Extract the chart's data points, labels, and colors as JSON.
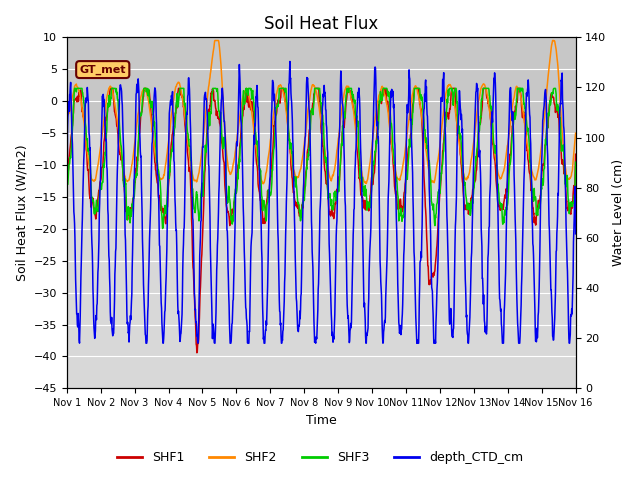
{
  "title": "Soil Heat Flux",
  "xlabel": "Time",
  "ylabel_left": "Soil Heat Flux (W/m2)",
  "ylabel_right": "Water Level (cm)",
  "ylim_left": [
    -45,
    10
  ],
  "ylim_right": [
    0,
    140
  ],
  "x_start": 0,
  "x_end": 15,
  "x_ticks": [
    0,
    1,
    2,
    3,
    4,
    5,
    6,
    7,
    8,
    9,
    10,
    11,
    12,
    13,
    14,
    15
  ],
  "x_tick_labels": [
    "Nov 1",
    "Nov 2",
    "Nov 3",
    "Nov 4",
    "Nov 5",
    "Nov 6",
    "Nov 7",
    "Nov 8",
    "Nov 9",
    "Nov 10",
    "Nov 11",
    "Nov 12",
    "Nov 13",
    "Nov 14",
    "Nov 15",
    "Nov 16"
  ],
  "shf1_color": "#cc0000",
  "shf2_color": "#ff8800",
  "shf3_color": "#00cc00",
  "ctd_color": "#0000ee",
  "annotation_label": "GT_met",
  "annotation_box_color": "#ffcc66",
  "annotation_text_color": "#660000",
  "background_color": "#ffffff",
  "plot_bg_color": "#d8d8d8",
  "grid_color": "#ffffff",
  "shaded_ymin": -5,
  "shaded_ymax": 10,
  "shaded_color": "#c0c0c0"
}
